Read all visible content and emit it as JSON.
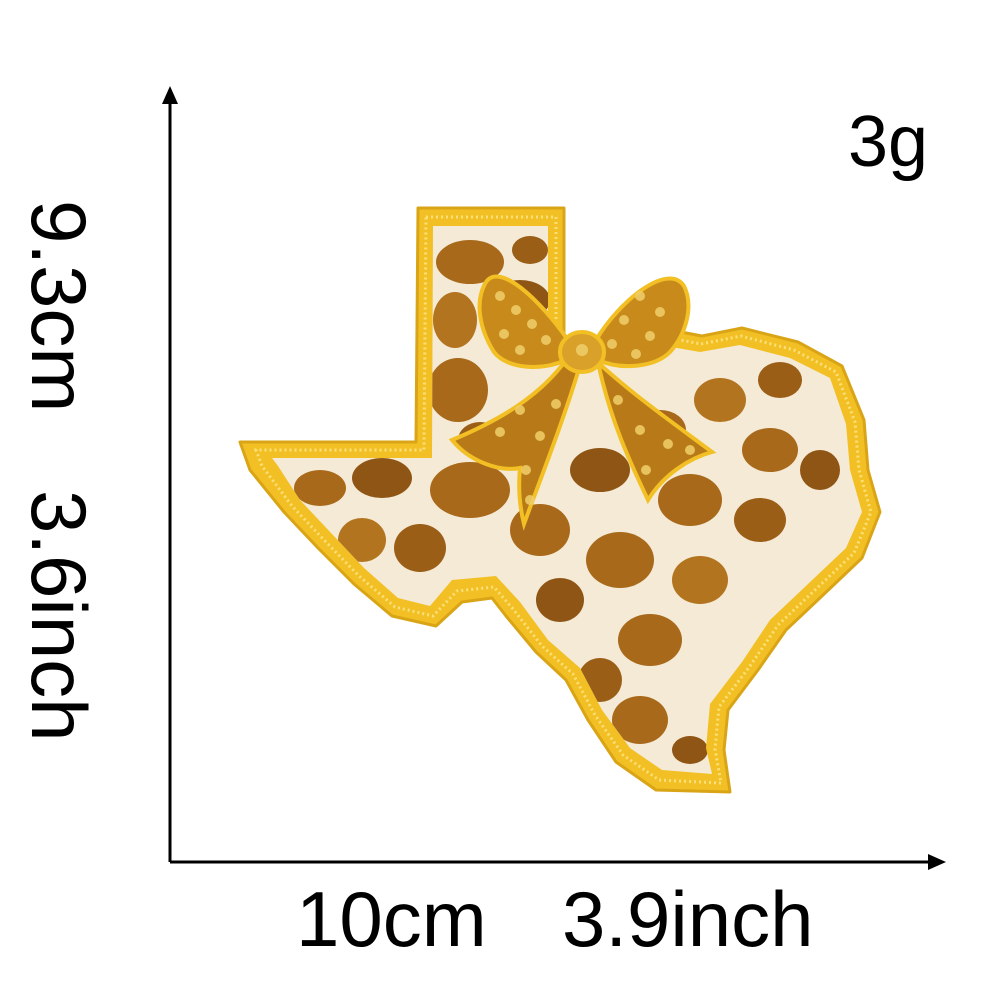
{
  "product": {
    "weight": "3g",
    "width_cm": "10cm",
    "width_inch": "3.9inch",
    "height_cm": "9.3cm",
    "height_inch": "3.6inch"
  },
  "colors": {
    "border": "#f2c024",
    "border_dark": "#d9a516",
    "fur_base": "#f4ead6",
    "spot": "#a8691a",
    "spot_dark": "#7a4610",
    "sequin": "#c98a1c",
    "sequin_light": "#f0cf6a",
    "axis": "#000000"
  }
}
